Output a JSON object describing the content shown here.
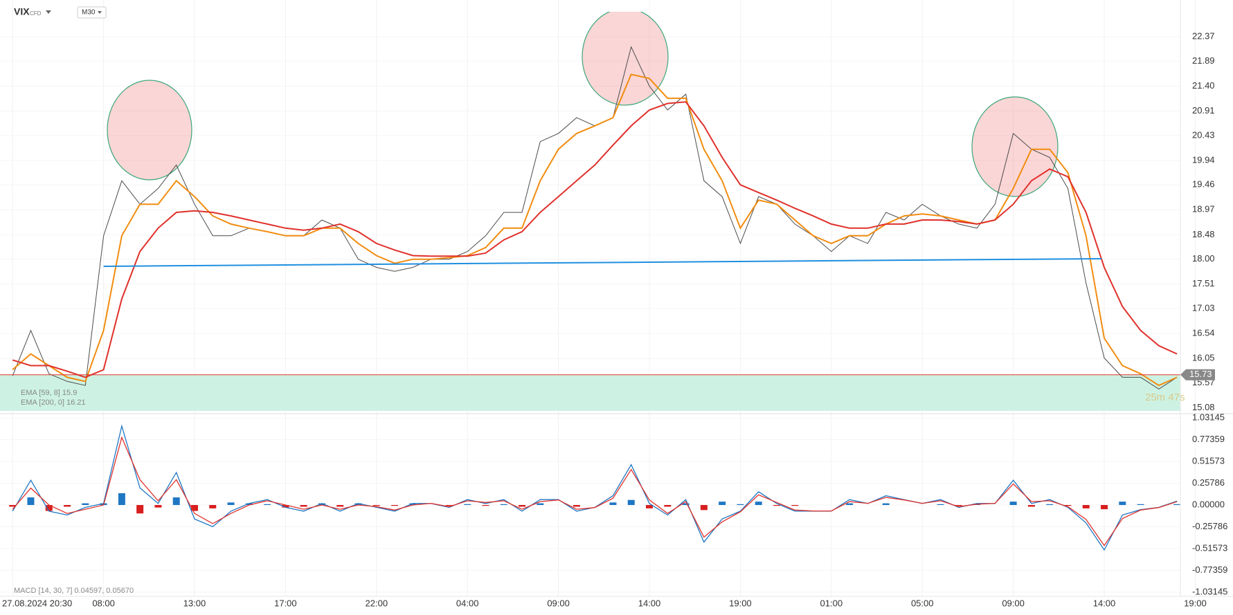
{
  "chart_data": [
    {
      "type": "line",
      "title": "VIX",
      "subtitle": "CFD",
      "timeframe": "M30",
      "countdown": "25m 47s",
      "x": [
        0,
        2,
        4,
        6,
        8,
        10,
        12,
        14,
        16,
        18,
        20,
        22,
        24,
        26,
        28,
        30,
        32,
        34,
        36,
        38,
        40,
        42,
        44,
        46,
        48,
        50,
        52,
        54,
        56,
        58,
        60,
        62,
        64,
        66,
        68,
        70,
        72,
        74,
        76,
        78,
        80,
        82,
        84,
        86,
        88,
        90,
        92,
        94,
        96,
        98,
        100,
        102,
        104,
        106,
        108,
        110,
        112,
        114,
        116,
        118,
        120,
        122,
        124,
        126,
        128
      ],
      "series": [
        {
          "color": "#4a4a4a",
          "values": [
            15.71,
            16.6,
            15.75,
            15.6,
            15.52,
            18.46,
            19.54,
            19.08,
            19.39,
            19.85,
            19.08,
            18.46,
            18.46,
            18.61,
            18.54,
            18.46,
            18.46,
            18.77,
            18.61,
            18.0,
            17.84,
            17.76,
            17.84,
            18.0,
            18.0,
            18.15,
            18.46,
            18.92,
            18.92,
            20.31,
            20.47,
            20.78,
            20.62,
            20.78,
            22.17,
            21.4,
            20.93,
            21.24,
            19.54,
            19.23,
            18.31,
            19.23,
            19.08,
            18.69,
            18.46,
            18.15,
            18.46,
            18.31,
            18.92,
            18.77,
            19.08,
            18.85,
            18.69,
            18.61,
            19.08,
            20.47,
            20.16,
            20.0,
            19.39,
            17.53,
            16.06,
            15.68,
            15.68,
            15.45,
            15.68
          ]
        },
        {
          "name": "EMA [59, 8] 15.9",
          "color": "#f28c0f",
          "values": [
            15.83,
            16.14,
            15.91,
            15.68,
            15.6,
            16.6,
            18.46,
            19.08,
            19.08,
            19.54,
            19.23,
            18.85,
            18.69,
            18.61,
            18.54,
            18.46,
            18.46,
            18.61,
            18.61,
            18.31,
            18.07,
            17.92,
            18.0,
            18.0,
            18.03,
            18.07,
            18.23,
            18.61,
            18.61,
            19.54,
            20.16,
            20.47,
            20.62,
            20.78,
            21.63,
            21.55,
            21.16,
            21.16,
            20.16,
            19.54,
            18.61,
            19.16,
            19.08,
            18.77,
            18.46,
            18.31,
            18.46,
            18.46,
            18.69,
            18.85,
            18.89,
            18.85,
            18.77,
            18.69,
            18.77,
            19.39,
            20.16,
            20.16,
            19.7,
            18.46,
            16.45,
            15.91,
            15.75,
            15.52,
            15.68
          ]
        },
        {
          "name": "EMA [200, 0] 16.21",
          "color": "#e0302a",
          "values": [
            16.02,
            15.91,
            15.91,
            15.8,
            15.68,
            15.83,
            17.22,
            18.15,
            18.61,
            18.92,
            18.95,
            18.92,
            18.85,
            18.77,
            18.69,
            18.61,
            18.57,
            18.61,
            18.69,
            18.54,
            18.31,
            18.18,
            18.07,
            18.06,
            18.06,
            18.06,
            18.12,
            18.38,
            18.54,
            18.92,
            19.23,
            19.54,
            19.85,
            20.24,
            20.62,
            20.93,
            21.06,
            21.09,
            20.62,
            20.0,
            19.46,
            19.31,
            19.16,
            19.0,
            18.85,
            18.69,
            18.61,
            18.61,
            18.69,
            18.69,
            18.77,
            18.77,
            18.74,
            18.69,
            18.77,
            19.08,
            19.54,
            19.77,
            19.62,
            18.92,
            17.84,
            17.07,
            16.6,
            16.3,
            16.14
          ]
        }
      ],
      "trendline": {
        "x": [
          10,
          119.7
        ],
        "values": [
          17.86,
          18.01
        ],
        "color": "#1f8fe0"
      },
      "support_zone": [
        15.02,
        15.73
      ],
      "zone_color": "#cdf2e3",
      "last_price": 15.73,
      "last_price_color": "#e0302a",
      "xlim": [
        -1.384,
        128.37
      ],
      "xticks": [
        {
          "value": 0,
          "label": "27.08.2024 20:30"
        },
        {
          "value": 10,
          "label": "08:00"
        },
        {
          "value": 20,
          "label": "13:00"
        },
        {
          "value": 30,
          "label": "17:00"
        },
        {
          "value": 40,
          "label": "22:00"
        },
        {
          "value": 50,
          "label": "04:00"
        },
        {
          "value": 60,
          "label": "09:00"
        },
        {
          "value": 70,
          "label": "14:00"
        },
        {
          "value": 80,
          "label": "19:00"
        },
        {
          "value": 90,
          "label": "01:00"
        },
        {
          "value": 100,
          "label": "05:00"
        },
        {
          "value": 110,
          "label": "09:00"
        },
        {
          "value": 120,
          "label": "14:00"
        },
        {
          "value": 130,
          "label": "19:00"
        }
      ],
      "ylim": [
        15.02,
        22.86
      ],
      "yticks": [
        15.08,
        15.57,
        16.05,
        16.54,
        17.03,
        17.51,
        {
          "value": 18,
          "label": "18.00"
        },
        18.48,
        18.97,
        19.46,
        19.94,
        20.43,
        20.91,
        {
          "value": 21.4,
          "label": "21.40"
        },
        21.89,
        22.37
      ],
      "grid": true
    },
    {
      "type": "macd",
      "title": "MACD [14, 30, 7] 0.04597, 0.05670",
      "series": [
        {
          "color": "#1f77c4",
          "values": [
            -0.073,
            0.293,
            -0.073,
            -0.119,
            -0.028,
            0.018,
            0.935,
            0.202,
            0.018,
            0.385,
            -0.165,
            -0.257,
            -0.073,
            0.018,
            0.064,
            -0.028,
            -0.073,
            0.018,
            -0.073,
            0.018,
            -0.028,
            -0.073,
            0.018,
            0.018,
            -0.028,
            0.064,
            0.018,
            0.064,
            -0.073,
            0.064,
            0.064,
            -0.073,
            -0.028,
            0.11,
            0.477,
            0.018,
            -0.119,
            0.064,
            -0.44,
            -0.165,
            -0.073,
            0.156,
            0.018,
            -0.073,
            -0.073,
            -0.073,
            0.064,
            0.018,
            0.11,
            0.064,
            0.018,
            0.064,
            -0.028,
            0.018,
            0.018,
            0.293,
            0.018,
            0.064,
            -0.028,
            -0.211,
            -0.532,
            -0.119,
            -0.055,
            -0.028,
            0.046
          ]
        },
        {
          "color": "#e0302a",
          "values": [
            -0.05,
            0.2,
            0.0,
            -0.1,
            -0.05,
            0.0,
            0.8,
            0.3,
            0.05,
            0.3,
            -0.1,
            -0.22,
            -0.1,
            0.0,
            0.05,
            0.0,
            -0.05,
            0.0,
            -0.05,
            0.0,
            -0.02,
            -0.06,
            0.0,
            0.02,
            -0.02,
            0.05,
            0.03,
            0.05,
            -0.05,
            0.04,
            0.06,
            -0.05,
            -0.03,
            0.08,
            0.42,
            0.06,
            -0.1,
            0.04,
            -0.38,
            -0.2,
            -0.08,
            0.12,
            0.03,
            -0.06,
            -0.07,
            -0.07,
            0.04,
            0.02,
            0.09,
            0.06,
            0.02,
            0.05,
            -0.02,
            0.01,
            0.02,
            0.25,
            0.04,
            0.05,
            -0.02,
            -0.17,
            -0.48,
            -0.16,
            -0.06,
            -0.03,
            0.04
          ]
        }
      ],
      "histogram": {
        "positive_color": "#1f77c4",
        "negative_color": "#d81e1e",
        "values": [
          -0.02,
          0.09,
          -0.07,
          -0.02,
          0.02,
          0.02,
          0.14,
          -0.1,
          -0.03,
          0.09,
          -0.07,
          -0.04,
          0.03,
          0.02,
          0.01,
          -0.03,
          -0.02,
          0.02,
          -0.02,
          0.02,
          -0.01,
          -0.01,
          0.02,
          0.0,
          -0.01,
          0.01,
          -0.01,
          0.01,
          -0.02,
          0.02,
          0.0,
          -0.02,
          0.0,
          0.03,
          0.06,
          -0.04,
          -0.02,
          0.02,
          -0.06,
          0.04,
          0.01,
          0.04,
          -0.01,
          -0.01,
          0.0,
          0.0,
          0.02,
          0.0,
          0.02,
          0.0,
          0.0,
          0.01,
          -0.01,
          0.01,
          0.0,
          0.04,
          -0.02,
          0.01,
          -0.01,
          -0.04,
          -0.05,
          0.04,
          0.01,
          0.0,
          0.01
        ]
      },
      "ylim": [
        -1.03145,
        1.03145
      ],
      "yticks": [
        -1.03145,
        -0.77359,
        -0.51573,
        -0.25786,
        {
          "value": 0,
          "label": "0.00000"
        },
        0.25786,
        0.51573,
        0.77359,
        1.03145
      ]
    }
  ]
}
